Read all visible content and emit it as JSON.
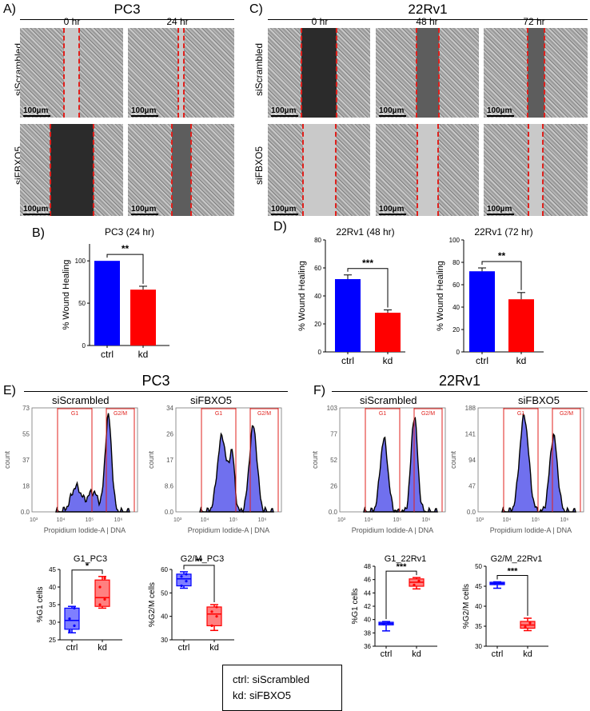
{
  "panels": {
    "A": {
      "label": "A)",
      "title": "PC3",
      "times": [
        "0 hr",
        "24 hr"
      ],
      "rows": [
        "siScrambled",
        "siFBXO5"
      ],
      "scale": "100µm"
    },
    "C": {
      "label": "C)",
      "title": "22Rv1",
      "times": [
        "0 hr",
        "48 hr",
        "72 hr"
      ],
      "rows": [
        "siScrambled",
        "siFBXO5"
      ],
      "scale": "100µm"
    },
    "B": {
      "label": "B)"
    },
    "D": {
      "label": "D)"
    },
    "E": {
      "label": "E)",
      "title": "PC3",
      "conditions": [
        "siScrambled",
        "siFBXO5"
      ]
    },
    "F": {
      "label": "F)",
      "title": "22Rv1",
      "conditions": [
        "siScrambled",
        "siFBXO5"
      ]
    }
  },
  "flow": {
    "xlabel": "Propidium Iodide-A | DNA",
    "ylabel": "count",
    "gate_g1": "G1",
    "gate_g2m": "G2/M",
    "xticks": [
      "10³",
      "10⁴",
      "10⁵",
      "10⁶"
    ],
    "E1": {
      "yticks": [
        "0.0",
        "18",
        "37",
        "55",
        "73"
      ]
    },
    "E2": {
      "yticks": [
        "0.0",
        "8.6",
        "17",
        "26",
        "34"
      ]
    },
    "F1": {
      "yticks": [
        "0.0",
        "26",
        "52",
        "77",
        "103"
      ]
    },
    "F2": {
      "yticks": [
        "0.0",
        "47",
        "94",
        "141",
        "188"
      ]
    }
  },
  "chart_data": [
    {
      "id": "B",
      "type": "bar",
      "title": "PC3 (24 hr)",
      "categories": [
        "ctrl",
        "kd"
      ],
      "values": [
        100,
        66
      ],
      "errors": [
        0,
        4
      ],
      "colors": [
        "#0000ff",
        "#ff0000"
      ],
      "ylabel": "% Wound Healing",
      "ylim": [
        0,
        120
      ],
      "yticks": [
        "0",
        "50",
        "100"
      ],
      "significance": "**"
    },
    {
      "id": "D1",
      "type": "bar",
      "title": "22Rv1 (48 hr)",
      "categories": [
        "ctrl",
        "kd"
      ],
      "values": [
        52,
        28
      ],
      "errors": [
        3,
        2
      ],
      "colors": [
        "#0000ff",
        "#ff0000"
      ],
      "ylabel": "% Wound Healing",
      "ylim": [
        0,
        80
      ],
      "yticks": [
        "0",
        "20",
        "40",
        "60",
        "80"
      ],
      "significance": "***"
    },
    {
      "id": "D2",
      "type": "bar",
      "title": "22Rv1 (72 hr)",
      "categories": [
        "ctrl",
        "kd"
      ],
      "values": [
        72,
        47
      ],
      "errors": [
        3,
        6
      ],
      "colors": [
        "#0000ff",
        "#ff0000"
      ],
      "ylabel": "% Wound Healing",
      "ylim": [
        0,
        100
      ],
      "yticks": [
        "0",
        "20",
        "40",
        "60",
        "80",
        "100"
      ],
      "significance": "**"
    },
    {
      "id": "E3",
      "type": "box",
      "title": "G1_PC3",
      "categories": [
        "ctrl",
        "kd"
      ],
      "ylabel": "%G1 cells",
      "ylim": [
        25,
        45
      ],
      "yticks": [
        "25",
        "30",
        "35",
        "40",
        "45"
      ],
      "significance": "*",
      "boxes": [
        {
          "min": 27,
          "q1": 28,
          "median": 30.5,
          "q3": 34,
          "max": 34.5,
          "points": [
            27.5,
            29,
            31,
            34
          ]
        },
        {
          "min": 34,
          "q1": 34.5,
          "median": 37,
          "q3": 42,
          "max": 43,
          "points": [
            35,
            36.5,
            40,
            42.5
          ]
        }
      ]
    },
    {
      "id": "E4",
      "type": "box",
      "title": "G2/M_PC3",
      "categories": [
        "ctrl",
        "kd"
      ],
      "ylabel": "%G2/M cells",
      "ylim": [
        30,
        60
      ],
      "yticks": [
        "30",
        "40",
        "50",
        "60"
      ],
      "significance": "**",
      "boxes": [
        {
          "min": 52,
          "q1": 53,
          "median": 56,
          "q3": 58,
          "max": 59,
          "points": [
            53,
            55,
            57,
            58
          ]
        },
        {
          "min": 34,
          "q1": 36,
          "median": 41,
          "q3": 44,
          "max": 45,
          "points": [
            36,
            40,
            42,
            44
          ]
        }
      ]
    },
    {
      "id": "F3",
      "type": "box",
      "title": "G1_22Rv1",
      "categories": [
        "ctrl",
        "kd"
      ],
      "ylabel": "%G1 cells",
      "ylim": [
        36,
        48
      ],
      "yticks": [
        "36",
        "38",
        "40",
        "42",
        "44",
        "46",
        "48"
      ],
      "significance": "***",
      "boxes": [
        {
          "min": 38.3,
          "q1": 39.2,
          "median": 39.4,
          "q3": 39.6,
          "max": 39.7,
          "points": [
            39.3,
            39.5
          ]
        },
        {
          "min": 44.6,
          "q1": 45,
          "median": 45.6,
          "q3": 46.1,
          "max": 46.3,
          "points": [
            45.2,
            45.8
          ]
        }
      ]
    },
    {
      "id": "F4",
      "type": "box",
      "title": "G2/M_22Rv1",
      "categories": [
        "ctrl",
        "kd"
      ],
      "ylabel": "%G2/M cells",
      "ylim": [
        30,
        50
      ],
      "yticks": [
        "30",
        "35",
        "40",
        "45",
        "50"
      ],
      "significance": "***",
      "boxes": [
        {
          "min": 44.5,
          "q1": 45.4,
          "median": 45.7,
          "q3": 46,
          "max": 46.1,
          "points": [
            45.6,
            45.9
          ]
        },
        {
          "min": 33.9,
          "q1": 34.5,
          "median": 35.3,
          "q3": 36.2,
          "max": 37,
          "points": [
            34.8,
            35.8
          ]
        }
      ]
    }
  ],
  "legend": {
    "line1": "ctrl: siScrambled",
    "line2": "kd: siFBXO5"
  }
}
